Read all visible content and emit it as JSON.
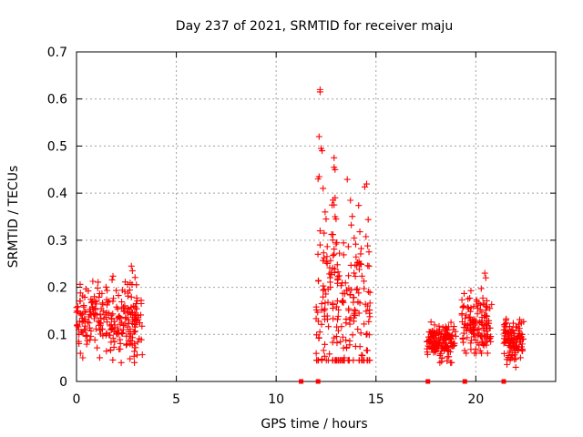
{
  "chart_data": {
    "type": "scatter",
    "title": "Day 237 of 2021, SRMTID for receiver maju",
    "xlabel": "GPS time / hours",
    "ylabel": "SRMTID / TECUs",
    "xlim": [
      0,
      24
    ],
    "ylim": [
      0,
      0.7
    ],
    "x_ticks": [
      0,
      5,
      10,
      15,
      20
    ],
    "x_tick_labels": [
      "0",
      "5",
      "10",
      "15",
      "20"
    ],
    "y_ticks": [
      0,
      0.1,
      0.2,
      0.3,
      0.4,
      0.5,
      0.6,
      0.7
    ],
    "y_tick_labels": [
      "0",
      "0.1",
      "0.2",
      "0.3",
      "0.4",
      "0.5",
      "0.6",
      "0.7"
    ],
    "grid": true,
    "marker": "+",
    "color": "#ff0000",
    "clusters": [
      {
        "x_start": 0.0,
        "x_end": 3.3,
        "y_min": 0.04,
        "y_max": 0.245,
        "y_center": 0.13,
        "n": 260
      },
      {
        "x_start": 12.0,
        "x_end": 14.7,
        "y_min": 0.045,
        "y_max": 0.62,
        "y_center": 0.16,
        "n": 230
      },
      {
        "x_start": 17.5,
        "x_end": 19.0,
        "y_min": 0.04,
        "y_max": 0.135,
        "y_center": 0.085,
        "n": 150
      },
      {
        "x_start": 19.3,
        "x_end": 20.8,
        "y_min": 0.06,
        "y_max": 0.23,
        "y_center": 0.12,
        "n": 140
      },
      {
        "x_start": 21.4,
        "x_end": 22.4,
        "y_min": 0.03,
        "y_max": 0.15,
        "y_center": 0.09,
        "n": 110
      }
    ],
    "notable_points": [
      {
        "x": 12.2,
        "y": 0.62
      },
      {
        "x": 12.2,
        "y": 0.615
      },
      {
        "x": 12.15,
        "y": 0.52
      },
      {
        "x": 12.25,
        "y": 0.495
      },
      {
        "x": 12.3,
        "y": 0.49
      },
      {
        "x": 12.9,
        "y": 0.475
      },
      {
        "x": 12.9,
        "y": 0.455
      },
      {
        "x": 12.95,
        "y": 0.45
      },
      {
        "x": 12.15,
        "y": 0.435
      },
      {
        "x": 12.1,
        "y": 0.43
      },
      {
        "x": 12.35,
        "y": 0.41
      },
      {
        "x": 12.95,
        "y": 0.39
      },
      {
        "x": 12.9,
        "y": 0.375
      },
      {
        "x": 12.45,
        "y": 0.36
      },
      {
        "x": 12.95,
        "y": 0.35
      },
      {
        "x": 13.0,
        "y": 0.345
      },
      {
        "x": 12.5,
        "y": 0.345
      },
      {
        "x": 12.2,
        "y": 0.32
      },
      {
        "x": 12.4,
        "y": 0.315
      },
      {
        "x": 12.2,
        "y": 0.29
      },
      {
        "x": 14.15,
        "y": 0.255
      },
      {
        "x": 14.2,
        "y": 0.25
      },
      {
        "x": 12.1,
        "y": 0.045
      },
      {
        "x": 2.75,
        "y": 0.245
      },
      {
        "x": 2.8,
        "y": 0.235
      },
      {
        "x": 20.45,
        "y": 0.23
      },
      {
        "x": 20.5,
        "y": 0.22
      },
      {
        "x": 2.9,
        "y": 0.04
      },
      {
        "x": 22.0,
        "y": 0.03
      }
    ],
    "zero_points": [
      11.25,
      12.1,
      17.6,
      19.45,
      21.4
    ]
  }
}
